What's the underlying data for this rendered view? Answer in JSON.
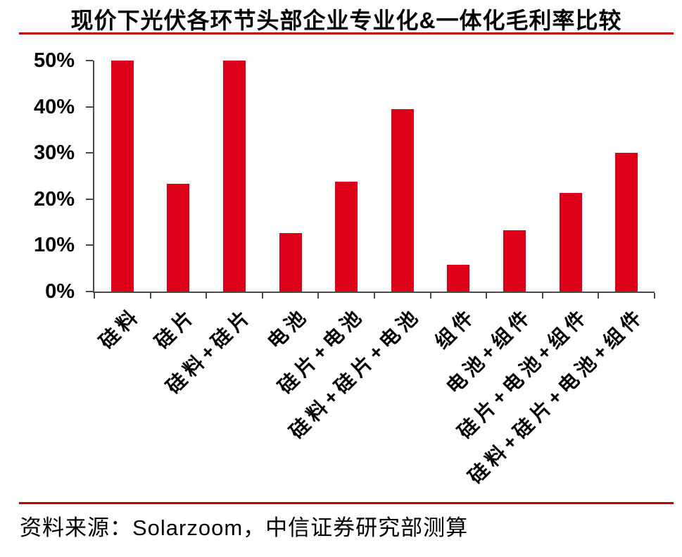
{
  "chart_data": {
    "type": "bar",
    "title": "现价下光伏各环节头部企业专业化&一体化毛利率比较",
    "categories": [
      "硅料",
      "硅片",
      "硅料+硅片",
      "电池",
      "硅片+电池",
      "硅料+硅片+电池",
      "组件",
      "电池+组件",
      "硅片+电池+组件",
      "硅料+硅片+电池+组件"
    ],
    "values": [
      50.0,
      23.4,
      50.0,
      12.7,
      23.8,
      39.5,
      5.8,
      13.2,
      21.3,
      30.0
    ],
    "unit": "%",
    "xlabel": "",
    "ylabel": "",
    "ylim": [
      0,
      50
    ],
    "ytick_step": 10,
    "ytick_labels": [
      "0%",
      "10%",
      "20%",
      "30%",
      "40%",
      "50%"
    ],
    "grid": false,
    "legend": false,
    "bar_color": "#dc0018"
  },
  "footer": {
    "source": "资料来源：Solarzoom，中信证券研究部测算"
  },
  "colors": {
    "accent_rule": "#c00000",
    "axis": "#4a4a4a",
    "bar": "#dc0018",
    "text": "#000000"
  }
}
